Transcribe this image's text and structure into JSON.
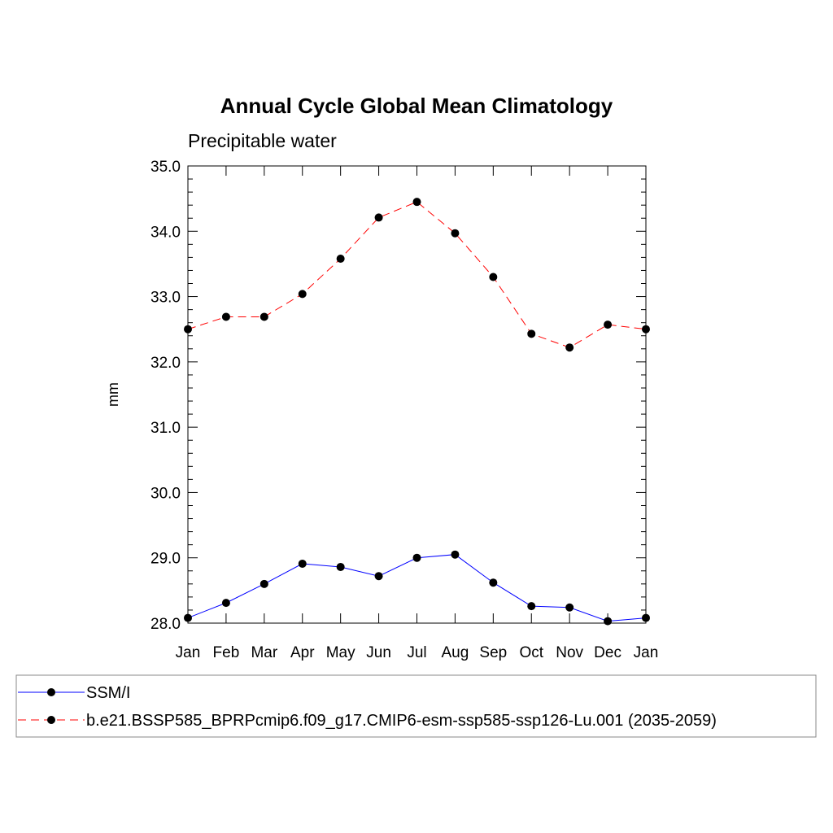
{
  "chart_data": {
    "type": "line",
    "title": "Annual Cycle Global Mean Climatology",
    "subtitle": "Precipitable water",
    "xlabel": "",
    "ylabel": "mm",
    "categories": [
      "Jan",
      "Feb",
      "Mar",
      "Apr",
      "May",
      "Jun",
      "Jul",
      "Aug",
      "Sep",
      "Oct",
      "Nov",
      "Dec",
      "Jan"
    ],
    "ylim": [
      28.0,
      35.0
    ],
    "yticks": [
      "28.0",
      "29.0",
      "30.0",
      "31.0",
      "32.0",
      "33.0",
      "34.0",
      "35.0"
    ],
    "grid": false,
    "legend_position": "bottom",
    "series": [
      {
        "name": "SSM/I",
        "color": "#0000ff",
        "line_style": "solid",
        "marker": "filled-circle",
        "values": [
          28.08,
          28.31,
          28.6,
          28.91,
          28.86,
          28.72,
          29.0,
          29.05,
          28.62,
          28.26,
          28.24,
          28.03,
          28.08
        ]
      },
      {
        "name": "b.e21.BSSP585_BPRPcmip6.f09_g17.CMIP6-esm-ssp585-ssp126-Lu.001 (2035-2059)",
        "color": "#ff0000",
        "line_style": "dashed",
        "marker": "filled-circle",
        "values": [
          32.5,
          32.69,
          32.69,
          33.04,
          33.58,
          34.21,
          34.45,
          33.97,
          33.3,
          32.43,
          32.22,
          32.57,
          32.5
        ]
      }
    ]
  }
}
